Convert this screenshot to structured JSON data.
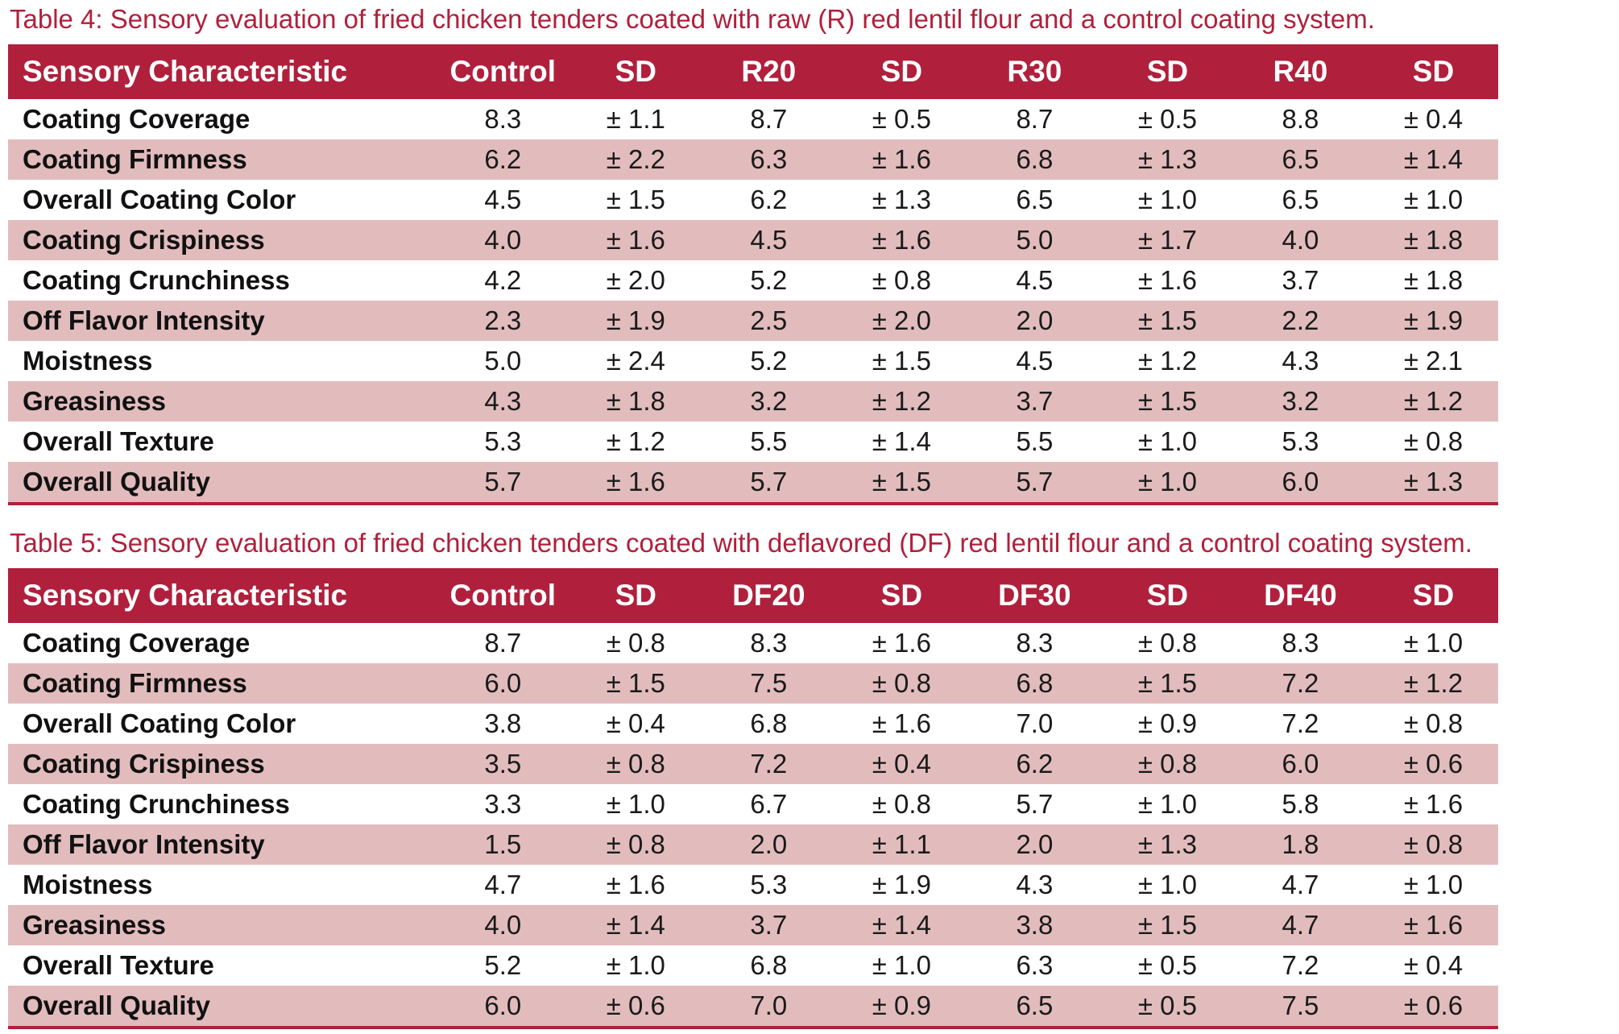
{
  "tables": [
    {
      "caption": "Table 4: Sensory evaluation of fried chicken tenders coated with raw (R) red lentil flour and a control coating system.",
      "headers": [
        "Sensory Characteristic",
        "Control",
        "SD",
        "R20",
        "SD",
        "R30",
        "SD",
        "R40",
        "SD"
      ],
      "rows": [
        [
          "Coating Coverage",
          "8.3",
          "± 1.1",
          "8.7",
          "± 0.5",
          "8.7",
          "± 0.5",
          "8.8",
          "± 0.4"
        ],
        [
          "Coating Firmness",
          "6.2",
          "± 2.2",
          "6.3",
          "± 1.6",
          "6.8",
          "± 1.3",
          "6.5",
          "± 1.4"
        ],
        [
          "Overall Coating Color",
          "4.5",
          "± 1.5",
          "6.2",
          "± 1.3",
          "6.5",
          "± 1.0",
          "6.5",
          "± 1.0"
        ],
        [
          "Coating Crispiness",
          "4.0",
          "± 1.6",
          "4.5",
          "± 1.6",
          "5.0",
          "± 1.7",
          "4.0",
          "± 1.8"
        ],
        [
          "Coating Crunchiness",
          "4.2",
          "± 2.0",
          "5.2",
          "± 0.8",
          "4.5",
          "± 1.6",
          "3.7",
          "± 1.8"
        ],
        [
          "Off Flavor Intensity",
          "2.3",
          "± 1.9",
          "2.5",
          "± 2.0",
          "2.0",
          "± 1.5",
          "2.2",
          "± 1.9"
        ],
        [
          "Moistness",
          "5.0",
          "± 2.4",
          "5.2",
          "± 1.5",
          "4.5",
          "± 1.2",
          "4.3",
          "± 2.1"
        ],
        [
          "Greasiness",
          "4.3",
          "± 1.8",
          "3.2",
          "± 1.2",
          "3.7",
          "± 1.5",
          "3.2",
          "± 1.2"
        ],
        [
          "Overall Texture",
          "5.3",
          "± 1.2",
          "5.5",
          "± 1.4",
          "5.5",
          "± 1.0",
          "5.3",
          "± 0.8"
        ],
        [
          "Overall Quality",
          "5.7",
          "± 1.6",
          "5.7",
          "± 1.5",
          "5.7",
          "± 1.0",
          "6.0",
          "± 1.3"
        ]
      ]
    },
    {
      "caption": "Table 5: Sensory evaluation of fried chicken tenders coated with deflavored (DF) red lentil flour and a control coating system.",
      "headers": [
        "Sensory Characteristic",
        "Control",
        "SD",
        "DF20",
        "SD",
        "DF30",
        "SD",
        "DF40",
        "SD"
      ],
      "rows": [
        [
          "Coating Coverage",
          "8.7",
          "± 0.8",
          "8.3",
          "± 1.6",
          "8.3",
          "± 0.8",
          "8.3",
          "± 1.0"
        ],
        [
          "Coating Firmness",
          "6.0",
          "± 1.5",
          "7.5",
          "± 0.8",
          "6.8",
          "± 1.5",
          "7.2",
          "± 1.2"
        ],
        [
          "Overall Coating Color",
          "3.8",
          "± 0.4",
          "6.8",
          "± 1.6",
          "7.0",
          "± 0.9",
          "7.2",
          "± 0.8"
        ],
        [
          "Coating Crispiness",
          "3.5",
          "± 0.8",
          "7.2",
          "± 0.4",
          "6.2",
          "± 0.8",
          "6.0",
          "± 0.6"
        ],
        [
          "Coating Crunchiness",
          "3.3",
          "± 1.0",
          "6.7",
          "± 0.8",
          "5.7",
          "± 1.0",
          "5.8",
          "± 1.6"
        ],
        [
          "Off Flavor Intensity",
          "1.5",
          "± 0.8",
          "2.0",
          "± 1.1",
          "2.0",
          "± 1.3",
          "1.8",
          "± 0.8"
        ],
        [
          "Moistness",
          "4.7",
          "± 1.6",
          "5.3",
          "± 1.9",
          "4.3",
          "± 1.0",
          "4.7",
          "± 1.0"
        ],
        [
          "Greasiness",
          "4.0",
          "± 1.4",
          "3.7",
          "± 1.4",
          "3.8",
          "± 1.5",
          "4.7",
          "± 1.6"
        ],
        [
          "Overall Texture",
          "5.2",
          "± 1.0",
          "6.8",
          "± 1.0",
          "6.3",
          "± 0.5",
          "7.2",
          "± 0.4"
        ],
        [
          "Overall Quality",
          "6.0",
          "± 0.6",
          "7.0",
          "± 0.9",
          "6.5",
          "± 0.5",
          "7.5",
          "± 0.6"
        ]
      ]
    }
  ],
  "colors": {
    "accent": "#b0203c",
    "band": "#e2bcbd",
    "header_text": "#ffffff"
  }
}
